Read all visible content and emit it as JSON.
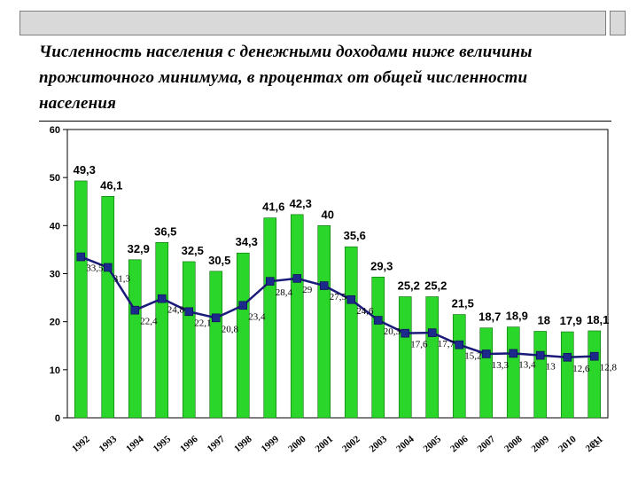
{
  "title": "Численность населения с денежными доходами ниже величины прожиточного минимума,  в процентах от общей численности населения",
  "page_number": "22",
  "colors": {
    "bar_fill": "#2bd62b",
    "bar_stroke": "#0a6a0a",
    "line": "#1a1a7a",
    "marker": "#1c2a8c"
  },
  "chart_data": {
    "type": "bar",
    "title": "",
    "xlabel": "",
    "ylabel": "",
    "ylim": [
      0,
      60
    ],
    "y_ticks": [
      "0",
      "10",
      "20",
      "30",
      "40",
      "50",
      "60"
    ],
    "grid": false,
    "categories": [
      "1992",
      "1993",
      "1994",
      "1995",
      "1996",
      "1997",
      "1998",
      "1999",
      "2000",
      "2001",
      "2002",
      "2003",
      "2004",
      "2005",
      "2006",
      "2007",
      "2008",
      "2009",
      "2010",
      "2011"
    ],
    "series": [
      {
        "type": "bar",
        "values": [
          49.3,
          46.1,
          32.9,
          36.5,
          32.5,
          30.5,
          34.3,
          41.6,
          42.3,
          40,
          35.6,
          29.3,
          25.2,
          25.2,
          21.5,
          18.7,
          18.9,
          18,
          17.9,
          18.1
        ],
        "labels": [
          "49,3",
          "46,1",
          "32,9",
          "36,5",
          "32,5",
          "30,5",
          "34,3",
          "41,6",
          "42,3",
          "40",
          "35,6",
          "29,3",
          "25,2",
          "25,2",
          "21,5",
          "18,7",
          "18,9",
          "18",
          "17,9",
          "18,1"
        ]
      },
      {
        "type": "line",
        "values": [
          33.5,
          31.3,
          22.4,
          24.8,
          22.1,
          20.8,
          23.4,
          28.4,
          29,
          27.5,
          24.6,
          20.3,
          17.6,
          17.7,
          15.2,
          13.3,
          13.4,
          13,
          12.6,
          12.8
        ],
        "labels": [
          "33,5",
          "31,3",
          "22,4",
          "24,8",
          "22,1",
          "20,8",
          "23,4",
          "28,4",
          "29",
          "27,5",
          "24,6",
          "20,3",
          "17,6",
          "17,7",
          "15,2",
          "13,3",
          "13,4",
          "13",
          "12,6",
          "12,8"
        ]
      }
    ]
  }
}
